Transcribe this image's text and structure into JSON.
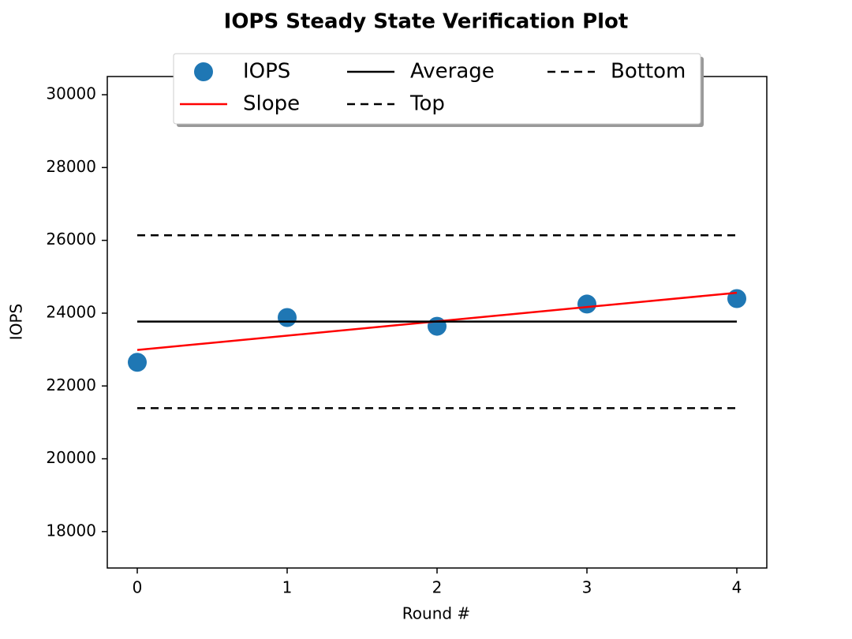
{
  "chart_data": {
    "type": "line",
    "title": "IOPS Steady State Verification Plot",
    "x_label": "Round #",
    "y_label": "IOPS",
    "xlim": [
      -0.2,
      4.2
    ],
    "xticks": [
      0,
      1,
      2,
      3,
      4
    ],
    "ylim": [
      17000,
      30500
    ],
    "yticks": [
      18000,
      20000,
      22000,
      24000,
      26000,
      28000,
      30000
    ],
    "legend": "upper center",
    "series": [
      {
        "name": "IOPS",
        "color": "#1f77b4",
        "style": "marker",
        "x": [
          0,
          1,
          2,
          3,
          4
        ],
        "values": [
          22650,
          23880,
          23640,
          24250,
          24400
        ]
      },
      {
        "name": "Slope",
        "color": "#ff0000",
        "style": "solid",
        "x": [
          0,
          4
        ],
        "values": [
          22990,
          24560
        ]
      },
      {
        "name": "Average",
        "color": "#000000",
        "style": "solid",
        "x": [
          0,
          4
        ],
        "values": [
          23770,
          23770
        ]
      },
      {
        "name": "Top",
        "color": "#000000",
        "style": "dashed",
        "x": [
          0,
          4
        ],
        "values": [
          26140,
          26140
        ]
      },
      {
        "name": "Bottom",
        "color": "#000000",
        "style": "dashed",
        "x": [
          0,
          4
        ],
        "values": [
          21390,
          21390
        ]
      }
    ]
  }
}
